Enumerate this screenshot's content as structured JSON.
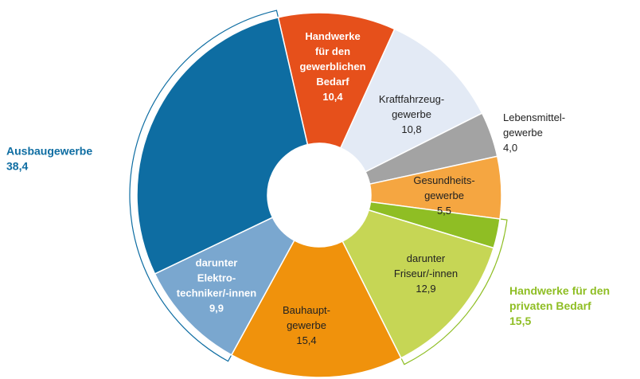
{
  "chart_data": {
    "type": "donut",
    "categories": [
      [
        "Handwerke",
        "für den",
        "gewerblichen",
        "Bedarf"
      ],
      [
        "Kraftfahrzeug-",
        "gewerbe"
      ],
      [
        "Lebensmittel-",
        "gewerbe"
      ],
      [
        "Gesundheits-",
        "gewerbe"
      ],
      null,
      [
        "darunter",
        "Friseur/-innen"
      ],
      [
        "Bauhaupt-",
        "gewerbe"
      ],
      [
        "darunter",
        "Elektro-",
        "techniker/-innen"
      ],
      null
    ],
    "values": [
      10.4,
      10.8,
      4.0,
      5.5,
      2.6,
      12.9,
      15.4,
      9.9,
      28.5
    ],
    "value_labels": [
      "10,4",
      "10,8",
      "4,0",
      "5,5",
      null,
      "12,9",
      "15,4",
      "9,9",
      null
    ],
    "colors": [
      "#e6501b",
      "#e3eaf5",
      "#a3a3a3",
      "#f5a641",
      "#8fbe24",
      "#c6d655",
      "#f0920c",
      "#7aa7cf",
      "#0e6da2"
    ],
    "groups": [
      {
        "name": [
          "Ausbaugewerbe"
        ],
        "value": 38.4,
        "value_label": "38,4",
        "color": "#0e6da2",
        "members": [
          7,
          8
        ]
      },
      {
        "name": [
          "Handwerke für den",
          "privaten Bedarf"
        ],
        "value": 15.5,
        "value_label": "15,5",
        "color": "#8fbe24",
        "members": [
          4,
          5
        ]
      }
    ]
  }
}
